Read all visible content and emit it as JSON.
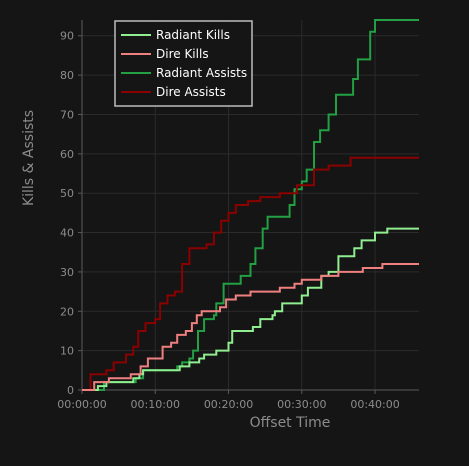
{
  "chart_data": {
    "type": "line",
    "xlabel": "Offset Time",
    "ylabel": "Kills & Assists",
    "xlim": [
      0,
      2760
    ],
    "ylim": [
      0,
      94
    ],
    "x_ticks": [
      {
        "value": 0,
        "label": "00:00:00"
      },
      {
        "value": 600,
        "label": "00:10:00"
      },
      {
        "value": 1200,
        "label": "00:20:00"
      },
      {
        "value": 1800,
        "label": "00:30:00"
      },
      {
        "value": 2400,
        "label": "00:40:00"
      }
    ],
    "y_ticks": [
      0,
      10,
      20,
      30,
      40,
      50,
      60,
      70,
      80,
      90
    ],
    "grid": true,
    "legend_position": "top-left",
    "series": [
      {
        "name": "Radiant Kills",
        "color": "#90ee90",
        "points": [
          [
            0,
            0
          ],
          [
            130,
            1
          ],
          [
            200,
            2
          ],
          [
            420,
            3
          ],
          [
            470,
            4
          ],
          [
            500,
            5
          ],
          [
            800,
            6
          ],
          [
            880,
            7
          ],
          [
            960,
            8
          ],
          [
            1000,
            9
          ],
          [
            1100,
            10
          ],
          [
            1200,
            12
          ],
          [
            1230,
            15
          ],
          [
            1400,
            16
          ],
          [
            1460,
            18
          ],
          [
            1560,
            19
          ],
          [
            1580,
            20
          ],
          [
            1640,
            22
          ],
          [
            1800,
            24
          ],
          [
            1850,
            26
          ],
          [
            1960,
            29
          ],
          [
            2020,
            30
          ],
          [
            2100,
            34
          ],
          [
            2230,
            36
          ],
          [
            2290,
            38
          ],
          [
            2400,
            40
          ],
          [
            2500,
            41
          ],
          [
            2760,
            41
          ]
        ]
      },
      {
        "name": "Dire Kills",
        "color": "#f08080",
        "points": [
          [
            0,
            0
          ],
          [
            100,
            2
          ],
          [
            220,
            3
          ],
          [
            400,
            4
          ],
          [
            480,
            6
          ],
          [
            540,
            8
          ],
          [
            660,
            11
          ],
          [
            730,
            12
          ],
          [
            780,
            14
          ],
          [
            850,
            15
          ],
          [
            900,
            17
          ],
          [
            940,
            19
          ],
          [
            980,
            20
          ],
          [
            1130,
            21
          ],
          [
            1180,
            23
          ],
          [
            1260,
            24
          ],
          [
            1380,
            25
          ],
          [
            1620,
            26
          ],
          [
            1740,
            27
          ],
          [
            1800,
            28
          ],
          [
            1960,
            29
          ],
          [
            2100,
            30
          ],
          [
            2300,
            31
          ],
          [
            2460,
            32
          ],
          [
            2760,
            32
          ]
        ]
      },
      {
        "name": "Radiant Assists",
        "color": "#22a043",
        "points": [
          [
            0,
            0
          ],
          [
            180,
            2
          ],
          [
            440,
            3
          ],
          [
            500,
            5
          ],
          [
            780,
            6
          ],
          [
            820,
            7
          ],
          [
            880,
            8
          ],
          [
            910,
            10
          ],
          [
            950,
            15
          ],
          [
            1000,
            18
          ],
          [
            1080,
            19
          ],
          [
            1100,
            22
          ],
          [
            1160,
            27
          ],
          [
            1300,
            29
          ],
          [
            1380,
            32
          ],
          [
            1420,
            36
          ],
          [
            1480,
            41
          ],
          [
            1520,
            44
          ],
          [
            1700,
            47
          ],
          [
            1740,
            51
          ],
          [
            1800,
            53
          ],
          [
            1840,
            56
          ],
          [
            1900,
            63
          ],
          [
            1950,
            66
          ],
          [
            2020,
            70
          ],
          [
            2080,
            75
          ],
          [
            2220,
            79
          ],
          [
            2260,
            84
          ],
          [
            2360,
            91
          ],
          [
            2400,
            94
          ],
          [
            2760,
            94
          ]
        ]
      },
      {
        "name": "Dire Assists",
        "color": "#8b0000",
        "points": [
          [
            0,
            0
          ],
          [
            70,
            4
          ],
          [
            200,
            5
          ],
          [
            260,
            7
          ],
          [
            360,
            9
          ],
          [
            420,
            11
          ],
          [
            460,
            15
          ],
          [
            520,
            17
          ],
          [
            600,
            18
          ],
          [
            640,
            22
          ],
          [
            700,
            24
          ],
          [
            760,
            25
          ],
          [
            820,
            32
          ],
          [
            880,
            36
          ],
          [
            1020,
            37
          ],
          [
            1080,
            40
          ],
          [
            1140,
            43
          ],
          [
            1200,
            45
          ],
          [
            1260,
            47
          ],
          [
            1360,
            48
          ],
          [
            1460,
            49
          ],
          [
            1620,
            50
          ],
          [
            1760,
            52
          ],
          [
            1900,
            56
          ],
          [
            2020,
            57
          ],
          [
            2200,
            59
          ],
          [
            2760,
            59
          ]
        ]
      }
    ]
  }
}
